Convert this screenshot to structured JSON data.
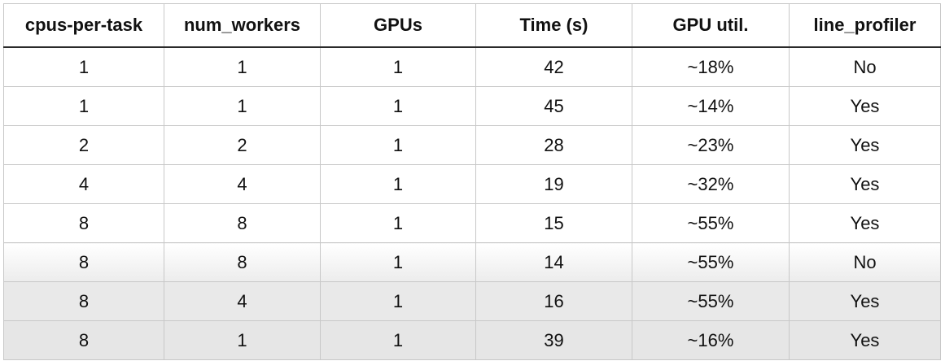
{
  "table": {
    "headers": [
      "cpus-per-task",
      "num_workers",
      "GPUs",
      "Time (s)",
      "GPU util.",
      "line_profiler"
    ],
    "rows": [
      [
        "1",
        "1",
        "1",
        "42",
        "~18%",
        "No"
      ],
      [
        "1",
        "1",
        "1",
        "45",
        "~14%",
        "Yes"
      ],
      [
        "2",
        "2",
        "1",
        "28",
        "~23%",
        "Yes"
      ],
      [
        "4",
        "4",
        "1",
        "19",
        "~32%",
        "Yes"
      ],
      [
        "8",
        "8",
        "1",
        "15",
        "~55%",
        "Yes"
      ],
      [
        "8",
        "8",
        "1",
        "14",
        "~55%",
        "No"
      ],
      [
        "8",
        "4",
        "1",
        "16",
        "~55%",
        "Yes"
      ],
      [
        "8",
        "1",
        "1",
        "39",
        "~16%",
        "Yes"
      ]
    ]
  }
}
